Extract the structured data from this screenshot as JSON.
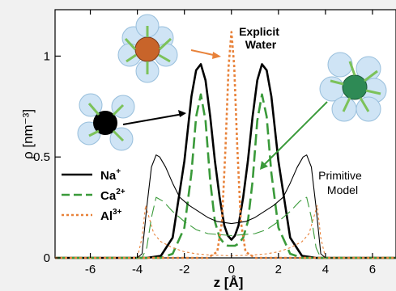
{
  "chart_data": {
    "type": "line",
    "xlabel": "z [Å]",
    "ylabel": "ρ [nm⁻³]",
    "xlim": [
      -7.5,
      7.0
    ],
    "ylim": [
      0,
      1.23
    ],
    "xticks": [
      -6,
      -4,
      -2,
      0,
      2,
      4,
      6
    ],
    "yticks": [
      0,
      0.5,
      1
    ],
    "xtick_labels": [
      "-6",
      "-4",
      "-2",
      "0",
      "2",
      "4",
      "6"
    ],
    "ytick_labels": [
      "0",
      "0.5",
      "1"
    ],
    "grid": false,
    "legend_placement": "center-left",
    "annotations": {
      "explicit_line1": "Explicit",
      "explicit_line2": "Water",
      "primitive_line1": "Primitive",
      "primitive_line2": "Model"
    },
    "legend": [
      {
        "base": "Na",
        "sup": "+",
        "color": "#000000",
        "dash": "solid"
      },
      {
        "base": "Ca",
        "sup": "2+",
        "color": "#3a9a3a",
        "dash": "long-dash"
      },
      {
        "base": "Al",
        "sup": "3+",
        "color": "#e8823a",
        "dash": "dotted"
      }
    ],
    "series": [
      {
        "name": "Na+",
        "model": "Explicit Water",
        "color": "#000000",
        "dash": "solid",
        "width": 2.6,
        "x": [
          -7.5,
          -3.6,
          -3.0,
          -2.5,
          -2.0,
          -1.7,
          -1.5,
          -1.3,
          -1.1,
          -0.9,
          -0.7,
          -0.5,
          -0.3,
          -0.15,
          0,
          0.15,
          0.3,
          0.5,
          0.7,
          0.9,
          1.1,
          1.3,
          1.5,
          1.7,
          2.0,
          2.5,
          3.0,
          3.6,
          7.0
        ],
        "y": [
          0,
          0,
          0.01,
          0.1,
          0.48,
          0.8,
          0.93,
          0.96,
          0.88,
          0.7,
          0.48,
          0.3,
          0.16,
          0.11,
          0.09,
          0.11,
          0.16,
          0.3,
          0.48,
          0.7,
          0.88,
          0.96,
          0.93,
          0.8,
          0.48,
          0.1,
          0.01,
          0,
          0
        ]
      },
      {
        "name": "Ca2+",
        "model": "Explicit Water",
        "color": "#3a9a3a",
        "dash": "long-dash",
        "width": 2.6,
        "x": [
          -7.5,
          -3.0,
          -2.5,
          -2.0,
          -1.7,
          -1.5,
          -1.3,
          -1.1,
          -0.9,
          -0.7,
          -0.5,
          -0.3,
          -0.15,
          0,
          0.15,
          0.3,
          0.5,
          0.7,
          0.9,
          1.1,
          1.3,
          1.5,
          1.7,
          2.0,
          2.5,
          3.0,
          7.0
        ],
        "y": [
          0,
          0,
          0.02,
          0.15,
          0.42,
          0.7,
          0.81,
          0.68,
          0.38,
          0.18,
          0.1,
          0.07,
          0.06,
          0.06,
          0.06,
          0.07,
          0.1,
          0.18,
          0.38,
          0.68,
          0.81,
          0.7,
          0.42,
          0.15,
          0.02,
          0,
          0
        ]
      },
      {
        "name": "Al3+",
        "model": "Explicit Water",
        "color": "#e8823a",
        "dash": "dotted",
        "width": 2.6,
        "x": [
          -7.5,
          -1.0,
          -0.6,
          -0.4,
          -0.25,
          -0.12,
          0,
          0.12,
          0.25,
          0.4,
          0.6,
          1.0,
          7.0
        ],
        "y": [
          0,
          0,
          0.03,
          0.18,
          0.55,
          0.95,
          1.12,
          0.95,
          0.55,
          0.18,
          0.03,
          0,
          0
        ]
      },
      {
        "name": "Na+",
        "model": "Primitive Model",
        "color": "#000000",
        "dash": "solid",
        "width": 1.1,
        "x": [
          -7.5,
          -4.0,
          -3.8,
          -3.6,
          -3.4,
          -3.2,
          -3.05,
          -2.8,
          -2.5,
          -2.2,
          -1.8,
          -1.4,
          -1.0,
          -0.6,
          0,
          0.6,
          1.0,
          1.4,
          1.8,
          2.2,
          2.5,
          2.8,
          3.05,
          3.2,
          3.4,
          3.6,
          3.8,
          4.0,
          7.0
        ],
        "y": [
          0,
          0,
          0.02,
          0.25,
          0.45,
          0.51,
          0.5,
          0.45,
          0.37,
          0.3,
          0.26,
          0.23,
          0.2,
          0.18,
          0.17,
          0.18,
          0.2,
          0.23,
          0.26,
          0.3,
          0.37,
          0.45,
          0.5,
          0.51,
          0.45,
          0.25,
          0.02,
          0,
          0
        ]
      },
      {
        "name": "Ca2+",
        "model": "Primitive Model",
        "color": "#3a9a3a",
        "dash": "long-dash",
        "width": 1.1,
        "x": [
          -7.5,
          -3.8,
          -3.6,
          -3.4,
          -3.2,
          -2.9,
          -2.5,
          -2.0,
          -1.5,
          -1.0,
          0,
          1.0,
          1.5,
          2.0,
          2.5,
          2.9,
          3.2,
          3.4,
          3.6,
          3.8,
          7.0
        ],
        "y": [
          0,
          0,
          0.05,
          0.2,
          0.3,
          0.28,
          0.23,
          0.18,
          0.14,
          0.12,
          0.11,
          0.12,
          0.14,
          0.18,
          0.23,
          0.28,
          0.3,
          0.2,
          0.05,
          0,
          0
        ]
      },
      {
        "name": "Al3+",
        "model": "Primitive Model",
        "color": "#e8823a",
        "dash": "dotted",
        "width": 1.1,
        "x": [
          -7.5,
          -4.0,
          -3.8,
          -3.65,
          -3.5,
          -3.3,
          -3.0,
          -2.5,
          -2.0,
          -1.5,
          -1.0,
          0,
          1.0,
          1.5,
          2.0,
          2.5,
          3.0,
          3.3,
          3.5,
          3.65,
          3.8,
          4.0,
          7.0
        ],
        "y": [
          0,
          0,
          0.1,
          0.26,
          0.2,
          0.12,
          0.08,
          0.05,
          0.03,
          0.02,
          0.015,
          0.01,
          0.015,
          0.02,
          0.03,
          0.05,
          0.08,
          0.12,
          0.2,
          0.26,
          0.1,
          0,
          0
        ]
      }
    ]
  }
}
